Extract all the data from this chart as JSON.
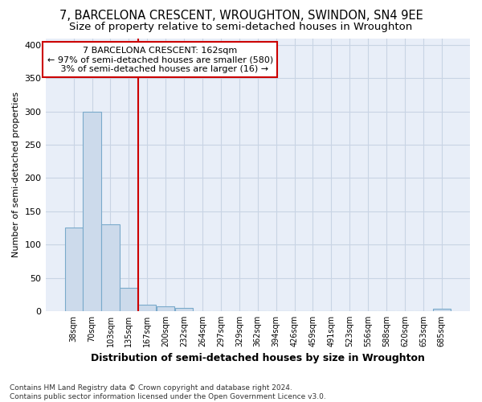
{
  "title1": "7, BARCELONA CRESCENT, WROUGHTON, SWINDON, SN4 9EE",
  "title2": "Size of property relative to semi-detached houses in Wroughton",
  "xlabel": "Distribution of semi-detached houses by size in Wroughton",
  "ylabel": "Number of semi-detached properties",
  "footnote": "Contains HM Land Registry data © Crown copyright and database right 2024.\nContains public sector information licensed under the Open Government Licence v3.0.",
  "bar_labels": [
    "38sqm",
    "70sqm",
    "103sqm",
    "135sqm",
    "167sqm",
    "200sqm",
    "232sqm",
    "264sqm",
    "297sqm",
    "329sqm",
    "362sqm",
    "394sqm",
    "426sqm",
    "459sqm",
    "491sqm",
    "523sqm",
    "556sqm",
    "588sqm",
    "620sqm",
    "653sqm",
    "685sqm"
  ],
  "bar_values": [
    125,
    300,
    130,
    35,
    10,
    7,
    5,
    0,
    0,
    0,
    0,
    0,
    0,
    0,
    0,
    0,
    0,
    0,
    0,
    0,
    3
  ],
  "bar_color": "#ccdaeb",
  "bar_edge_color": "#7aaacb",
  "property_bar_index": 4,
  "property_line_color": "#cc0000",
  "annotation_line1": "7 BARCELONA CRESCENT: 162sqm",
  "annotation_line2": "← 97% of semi-detached houses are smaller (580)",
  "annotation_line3": "   3% of semi-detached houses are larger (16) →",
  "annotation_box_color": "#cc0000",
  "ylim": [
    0,
    410
  ],
  "yticks": [
    0,
    50,
    100,
    150,
    200,
    250,
    300,
    350,
    400
  ],
  "grid_color": "#c8d4e4",
  "bg_color": "#e8eef8",
  "title1_fontsize": 10.5,
  "title2_fontsize": 9.5
}
